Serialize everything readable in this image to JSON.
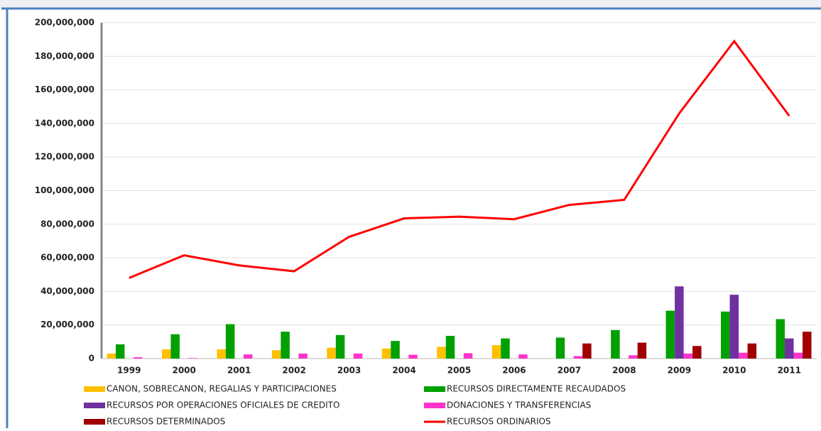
{
  "chart_data": {
    "type": "bar",
    "categories": [
      "1999",
      "2000",
      "2001",
      "2002",
      "2003",
      "2004",
      "2005",
      "2006",
      "2007",
      "2008",
      "2009",
      "2010",
      "2011"
    ],
    "series": [
      {
        "name": "CANON, SOBRECANON, REGALIAS Y PARTICIPACIONES",
        "color": "#ffc000",
        "type": "bar",
        "values": [
          3000000,
          5500000,
          5500000,
          5000000,
          6500000,
          6000000,
          7000000,
          8000000,
          0,
          0,
          0,
          0,
          0
        ]
      },
      {
        "name": "RECURSOS DIRECTAMENTE RECAUDADOS",
        "color": "#00a000",
        "type": "bar",
        "values": [
          8500000,
          14500000,
          20500000,
          16000000,
          14000000,
          10500000,
          13500000,
          12000000,
          12500000,
          17000000,
          28500000,
          28000000,
          23500000
        ]
      },
      {
        "name": "RECURSOS POR OPERACIONES OFICIALES DE CREDITO",
        "color": "#7030a0",
        "type": "bar",
        "values": [
          0,
          0,
          0,
          0,
          0,
          0,
          0,
          0,
          0,
          0,
          43000000,
          38000000,
          12000000
        ]
      },
      {
        "name": "DONACIONES Y TRANSFERENCIAS",
        "color": "#ff33cc",
        "type": "bar",
        "values": [
          800000,
          300000,
          2500000,
          3000000,
          3000000,
          2300000,
          3200000,
          2500000,
          1500000,
          2000000,
          3000000,
          3500000,
          3500000
        ]
      },
      {
        "name": "RECURSOS DETERMINADOS",
        "color": "#a00000",
        "type": "bar",
        "values": [
          0,
          0,
          0,
          0,
          0,
          0,
          0,
          0,
          9000000,
          9500000,
          7500000,
          9000000,
          16000000
        ]
      },
      {
        "name": "RECURSOS ORDINARIOS",
        "color": "#ff0000",
        "type": "line",
        "values": [
          48000000,
          61500000,
          55500000,
          52000000,
          72500000,
          83500000,
          84500000,
          83000000,
          91500000,
          94500000,
          146000000,
          189000000,
          144500000
        ]
      }
    ],
    "ylim": [
      0,
      200000000
    ],
    "yticks": [
      0,
      {
        "value": 20000000,
        "label": "20,000,000"
      },
      {
        "value": 40000000,
        "label": "40,000,000"
      },
      {
        "value": 60000000,
        "label": "60,000,000"
      },
      {
        "value": 80000000,
        "label": "80,000,000"
      },
      {
        "value": 100000000,
        "label": "100,000,000"
      },
      {
        "value": 120000000,
        "label": "120,000,000"
      },
      {
        "value": 140000000,
        "label": "140,000,000"
      },
      {
        "value": 160000000,
        "label": "160,000,000"
      },
      {
        "value": 180000000,
        "label": "180,000,000"
      },
      {
        "value": 200000000,
        "label": "200,000,000"
      }
    ],
    "grid": true,
    "legend": "bottom"
  }
}
